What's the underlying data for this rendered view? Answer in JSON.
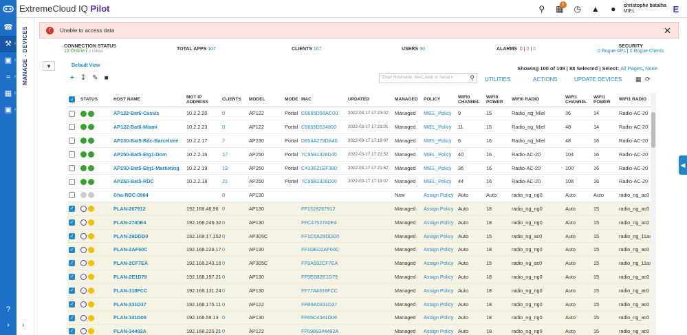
{
  "header": {
    "brand": "ExtremeCloud IQ",
    "brand_suffix": "Pilot",
    "badge_count": "6",
    "user_name": "christophe batalha",
    "user_org": "MIEL"
  },
  "sidebar": {
    "section_label": "MANAGE - DEVICES"
  },
  "alert": {
    "message": "Unable to access data"
  },
  "stats": {
    "connection": {
      "label": "CONNECTION STATUS",
      "online": "13 Online",
      "offline": "2 Offline"
    },
    "total_apps": {
      "label": "TOTAL APPS",
      "value": "107"
    },
    "clients": {
      "label": "CLIENTS",
      "value": "167"
    },
    "users": {
      "label": "USERS",
      "value": "30"
    },
    "alarms": {
      "label": "ALARMS",
      "v1": "0",
      "v2": "0",
      "v3": "0"
    },
    "security": {
      "label": "SECURITY",
      "rogue_aps": "0 Rogue APs",
      "rogue_clients": "0 Rogue Clients"
    }
  },
  "toolbar": {
    "default_view": "Default View",
    "showing": "Showing 100 of 108 | 88 Selected | Select:",
    "all_pages": "All Pages",
    "none": "None",
    "search_placeholder": "Enter Hostname, MAC Addr or Serial #",
    "utilities": "UTILITIES",
    "actions": "ACTIONS",
    "update_devices": "UPDATE DEVICES"
  },
  "columns": [
    "STATUS",
    "HOST NAME",
    "MGT IP ADDRESS",
    "CLIENTS",
    "MODEL",
    "MODE",
    "MAC",
    "UPDATED",
    "MANAGED",
    "POLICY",
    "WIFI0 CHANNEL",
    "WIFI0 POWER",
    "WIFI0 RADIO",
    "WIFI1 CHANNEL",
    "WIFI1 POWER",
    "WIFI1 RADIO"
  ],
  "rows": [
    {
      "sel": false,
      "st": "g",
      "host": "AP122-Bat6-Cassis",
      "ip": "10.2.2.20",
      "clients": "0",
      "model": "AP122",
      "mode": "Portal",
      "mac": "C8665D58AC00",
      "upd": "2022-03-17 17:23:02",
      "managed": "Managed",
      "policy": "MIEL_Policy",
      "w0c": "9",
      "w0p": "15",
      "w0r": "Radio_ng_Miel",
      "w1c": "36",
      "w1p": "14",
      "w1r": "Radio-AC-20"
    },
    {
      "sel": false,
      "st": "g",
      "host": "AP122-Bat6-Miami",
      "ip": "10.2.2.23",
      "clients": "0",
      "model": "AP122",
      "mode": "Portal",
      "mac": "C8665D524800",
      "upd": "2022-03-17 17:23:01",
      "managed": "Managed",
      "policy": "MIEL_Policy",
      "w0c": "11",
      "w0p": "15",
      "w0r": "Radio_ng_Miel",
      "w1c": "48",
      "w1p": "14",
      "w1r": "Radio-AC-20"
    },
    {
      "sel": false,
      "st": "g",
      "host": "AP230-Bat5-Rdc-Barcelone",
      "ip": "10.2.2.17",
      "clients": "7",
      "model": "AP230",
      "mode": "Portal",
      "mac": "D854A279DA40",
      "upd": "2022-03-17 17:19:07",
      "managed": "Managed",
      "policy": "MIEL_Policy",
      "w0c": "6",
      "w0p": "16",
      "w0r": "Radio_ng_Miel",
      "w1c": "48",
      "w1p": "16",
      "w1r": "Radio-AC-20"
    },
    {
      "sel": false,
      "st": "g",
      "host": "AP250-Bat5-Etg1-Dom",
      "ip": "10.2.2.16",
      "clients": "17",
      "model": "AP250",
      "mode": "Portal",
      "mac": "7C95B1328D40",
      "upd": "2022-03-17 17:21:52",
      "managed": "Managed",
      "policy": "MIEL_Policy",
      "w0c": "40",
      "w0p": "16",
      "w0r": "Radio-AC-20",
      "w1c": "104",
      "w1p": "16",
      "w1r": "Radio-AC-20"
    },
    {
      "sel": false,
      "st": "g",
      "host": "AP250-Bat5-Etg1-Marketing",
      "ip": "10.2.2.19",
      "clients": "13",
      "model": "AP250",
      "mode": "Portal",
      "mac": "C413E21BF380",
      "upd": "2022-03-17 17:21:52",
      "managed": "Managed",
      "policy": "MIEL_Policy",
      "w0c": "36",
      "w0p": "16",
      "w0r": "Radio-AC-20",
      "w1c": "100",
      "w1p": "16",
      "w1r": "Radio-AC-20"
    },
    {
      "sel": false,
      "st": "g",
      "host": "AP250-Bat5-RDC",
      "ip": "10.2.2.18",
      "clients": "21",
      "model": "AP250",
      "mode": "Portal",
      "mac": "7C95B1328D00",
      "upd": "2022-03-17 17:19:07",
      "managed": "Managed",
      "policy": "MIEL_Policy",
      "w0c": "44",
      "w0p": "16",
      "w0r": "Radio-AC-20",
      "w1c": "108",
      "w1p": "16",
      "w1r": "Radio-AC-20"
    },
    {
      "sel": false,
      "st": "gr",
      "host": "Cha-RDC-0904",
      "ip": "",
      "clients": "0",
      "model": "AP130",
      "mode": "",
      "mac": "",
      "upd": "",
      "managed": "New",
      "policy": "Assign Policy",
      "w0c": "Auto",
      "w0p": "Auto",
      "w0r": "radio_ng_ng0",
      "w1c": "Auto",
      "w1p": "Auto",
      "w1r": "radio_ng_ac0"
    },
    {
      "sel": true,
      "st": "p",
      "host": "PLAN-267912",
      "ip": "192.168.46.96",
      "clients": "0",
      "model": "AP130",
      "mode": "",
      "mac": "FF1528267912",
      "upd": "",
      "managed": "Managed",
      "policy": "Assign Policy",
      "w0c": "Auto",
      "w0p": "18",
      "w0r": "radio_ng_ng0",
      "w1c": "Auto",
      "w1p": "15",
      "w1r": "radio_ng_ac0"
    },
    {
      "sel": true,
      "st": "p",
      "host": "PLAN-2740E4",
      "ip": "192.168.246.32",
      "clients": "0",
      "model": "AP130",
      "mode": "",
      "mac": "FFC4752740E4",
      "upd": "",
      "managed": "Managed",
      "policy": "Assign Policy",
      "w0c": "Auto",
      "w0p": "18",
      "w0r": "radio_ng_ng0",
      "w1c": "Auto",
      "w1p": "15",
      "w1r": "radio_ng_ac0"
    },
    {
      "sel": true,
      "st": "p",
      "host": "PLAN-29DDD0",
      "ip": "192.168.17.152",
      "clients": "0",
      "model": "AP305C",
      "mode": "",
      "mac": "FF1C0A29DDD0",
      "upd": "",
      "managed": "Managed",
      "policy": "Assign Policy",
      "w0c": "Auto",
      "w0p": "15",
      "w0r": "radio_ng_ac0",
      "w1c": "Auto",
      "w1p": "15",
      "w1r": "radio_ng_11ax"
    },
    {
      "sel": true,
      "st": "p",
      "host": "PLAN-2AF60C",
      "ip": "192.168.229.17",
      "clients": "0",
      "model": "AP130",
      "mode": "",
      "mac": "FF1DED2AF60C",
      "upd": "",
      "managed": "Managed",
      "policy": "Assign Policy",
      "w0c": "Auto",
      "w0p": "18",
      "w0r": "radio_ng_ng0",
      "w1c": "Auto",
      "w1p": "15",
      "w1r": "radio_ng_ac0"
    },
    {
      "sel": true,
      "st": "p",
      "host": "PLAN-2CF7EA",
      "ip": "192.168.243.160",
      "clients": "0",
      "model": "AP305C",
      "mode": "",
      "mac": "FF9A592CF7EA",
      "upd": "",
      "managed": "Managed",
      "policy": "Assign Policy",
      "w0c": "Auto",
      "w0p": "15",
      "w0r": "radio_ng_ac0",
      "w1c": "Auto",
      "w1p": "15",
      "w1r": "radio_ng_11ax"
    },
    {
      "sel": true,
      "st": "p",
      "host": "PLAN-2E1D79",
      "ip": "192.168.197.217",
      "clients": "0",
      "model": "AP130",
      "mode": "",
      "mac": "FF9E6B2E1D79",
      "upd": "",
      "managed": "Managed",
      "policy": "Assign Policy",
      "w0c": "Auto",
      "w0p": "18",
      "w0r": "radio_ng_ng0",
      "w1c": "Auto",
      "w1p": "15",
      "w1r": "radio_ng_ac0"
    },
    {
      "sel": true,
      "st": "p",
      "host": "PLAN-318FCC",
      "ip": "192.168.131.244",
      "clients": "0",
      "model": "AP130",
      "mode": "",
      "mac": "FF77A4318FCC",
      "upd": "",
      "managed": "Managed",
      "policy": "Assign Policy",
      "w0c": "Auto",
      "w0p": "18",
      "w0r": "radio_ng_ng0",
      "w1c": "Auto",
      "w1p": "15",
      "w1r": "radio_ng_ac0"
    },
    {
      "sel": true,
      "st": "p",
      "host": "PLAN-331D37",
      "ip": "192.168.175.118",
      "clients": "0",
      "model": "AP122",
      "mode": "",
      "mac": "FFB9A0331D37",
      "upd": "",
      "managed": "Managed",
      "policy": "Assign Policy",
      "w0c": "Auto",
      "w0p": "18",
      "w0r": "radio_ng_ng0",
      "w1c": "Auto",
      "w1p": "15",
      "w1r": "radio_ng_ac0"
    },
    {
      "sel": true,
      "st": "p",
      "host": "PLAN-341D09",
      "ip": "192.168.59.13",
      "clients": "0",
      "model": "AP130",
      "mode": "",
      "mac": "FF65C4341D09",
      "upd": "",
      "managed": "Managed",
      "policy": "Assign Policy",
      "w0c": "Auto",
      "w0p": "18",
      "w0r": "radio_ng_ng0",
      "w1c": "Auto",
      "w1p": "15",
      "w1r": "radio_ng_ac0"
    },
    {
      "sel": true,
      "st": "p",
      "host": "PLAN-34492A",
      "ip": "192.168.220.216",
      "clients": "0",
      "model": "AP122",
      "mode": "",
      "mac": "FF5989344492A",
      "upd": "",
      "managed": "Managed",
      "policy": "Assign Policy",
      "w0c": "Auto",
      "w0p": "18",
      "w0r": "radio_ng_ng0",
      "w1c": "Auto",
      "w1p": "15",
      "w1r": "radio_ng_ac0"
    }
  ]
}
